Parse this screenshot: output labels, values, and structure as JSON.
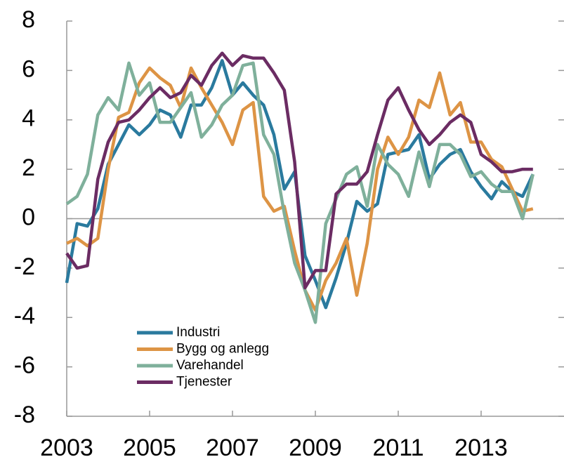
{
  "chart_data": {
    "type": "line",
    "x": [
      2003,
      2003.25,
      2003.5,
      2003.75,
      2004,
      2004.25,
      2004.5,
      2004.75,
      2005,
      2005.25,
      2005.5,
      2005.75,
      2006,
      2006.25,
      2006.5,
      2006.75,
      2007,
      2007.25,
      2007.5,
      2007.75,
      2008,
      2008.25,
      2008.5,
      2008.75,
      2009,
      2009.25,
      2009.5,
      2009.75,
      2010,
      2010.25,
      2010.5,
      2010.75,
      2011,
      2011.25,
      2011.5,
      2011.75,
      2012,
      2012.25,
      2012.5,
      2012.75,
      2013,
      2013.25,
      2013.5,
      2013.75,
      2014,
      2014.25
    ],
    "series": [
      {
        "name": "Industri",
        "color": "#2a7a9e",
        "values": [
          -2.6,
          -0.2,
          -0.3,
          0.4,
          2.2,
          3.0,
          3.8,
          3.4,
          3.8,
          4.4,
          4.2,
          3.3,
          4.6,
          4.6,
          5.3,
          6.4,
          5.0,
          5.5,
          5.0,
          4.6,
          3.4,
          1.2,
          1.9,
          -1.5,
          -2.5,
          -3.6,
          -2.4,
          -1.0,
          0.7,
          0.3,
          0.6,
          2.6,
          2.7,
          2.8,
          3.4,
          1.6,
          2.2,
          2.6,
          2.8,
          1.9,
          1.3,
          0.8,
          1.5,
          1.1,
          0.9,
          1.8
        ]
      },
      {
        "name": "Bygg og anlegg",
        "color": "#dd9445",
        "values": [
          -1.0,
          -0.8,
          -1.1,
          -0.8,
          2.0,
          4.1,
          4.3,
          5.5,
          6.1,
          5.7,
          5.4,
          4.5,
          6.1,
          5.3,
          4.6,
          3.9,
          3.0,
          4.4,
          4.7,
          0.9,
          0.3,
          0.5,
          -1.3,
          -2.9,
          -3.7,
          -2.5,
          -1.8,
          -0.8,
          -3.1,
          -1.0,
          2.0,
          3.3,
          2.6,
          3.3,
          4.8,
          4.5,
          5.9,
          4.2,
          4.7,
          3.1,
          3.1,
          2.4,
          2.1,
          1.2,
          0.3,
          0.4
        ]
      },
      {
        "name": "Varehandel",
        "color": "#7fb09b",
        "values": [
          0.6,
          0.9,
          1.8,
          4.2,
          4.9,
          4.4,
          6.3,
          5.0,
          5.5,
          3.9,
          3.9,
          4.5,
          5.1,
          3.3,
          3.8,
          4.6,
          5.0,
          6.2,
          6.3,
          3.4,
          2.6,
          0.2,
          -1.8,
          -2.9,
          -4.2,
          -0.2,
          0.8,
          1.8,
          2.1,
          0.5,
          3.0,
          2.2,
          1.8,
          0.9,
          2.7,
          1.3,
          3.0,
          3.0,
          2.6,
          1.7,
          1.9,
          1.4,
          1.1,
          1.1,
          0.0,
          1.8
        ]
      },
      {
        "name": "Tjenester",
        "color": "#6b2c63",
        "values": [
          -1.4,
          -2.0,
          -1.9,
          1.6,
          3.1,
          3.9,
          4.0,
          4.4,
          4.9,
          5.3,
          4.9,
          5.1,
          5.8,
          5.4,
          6.2,
          6.7,
          6.2,
          6.6,
          6.5,
          6.5,
          5.9,
          5.2,
          2.3,
          -2.8,
          -2.1,
          -2.1,
          1.0,
          1.4,
          1.4,
          1.9,
          3.4,
          4.8,
          5.3,
          4.4,
          3.6,
          3.0,
          3.4,
          3.9,
          4.2,
          3.9,
          2.6,
          2.3,
          1.9,
          1.9,
          2.0,
          2.0
        ]
      }
    ],
    "xlim": [
      2003,
      2015
    ],
    "xticks": [
      2003,
      2005,
      2007,
      2009,
      2011,
      2013
    ],
    "ylim": [
      -8,
      8
    ],
    "yticks": [
      -8,
      -6,
      -4,
      -2,
      0,
      2,
      4,
      6,
      8
    ],
    "legend": "lower-left"
  }
}
